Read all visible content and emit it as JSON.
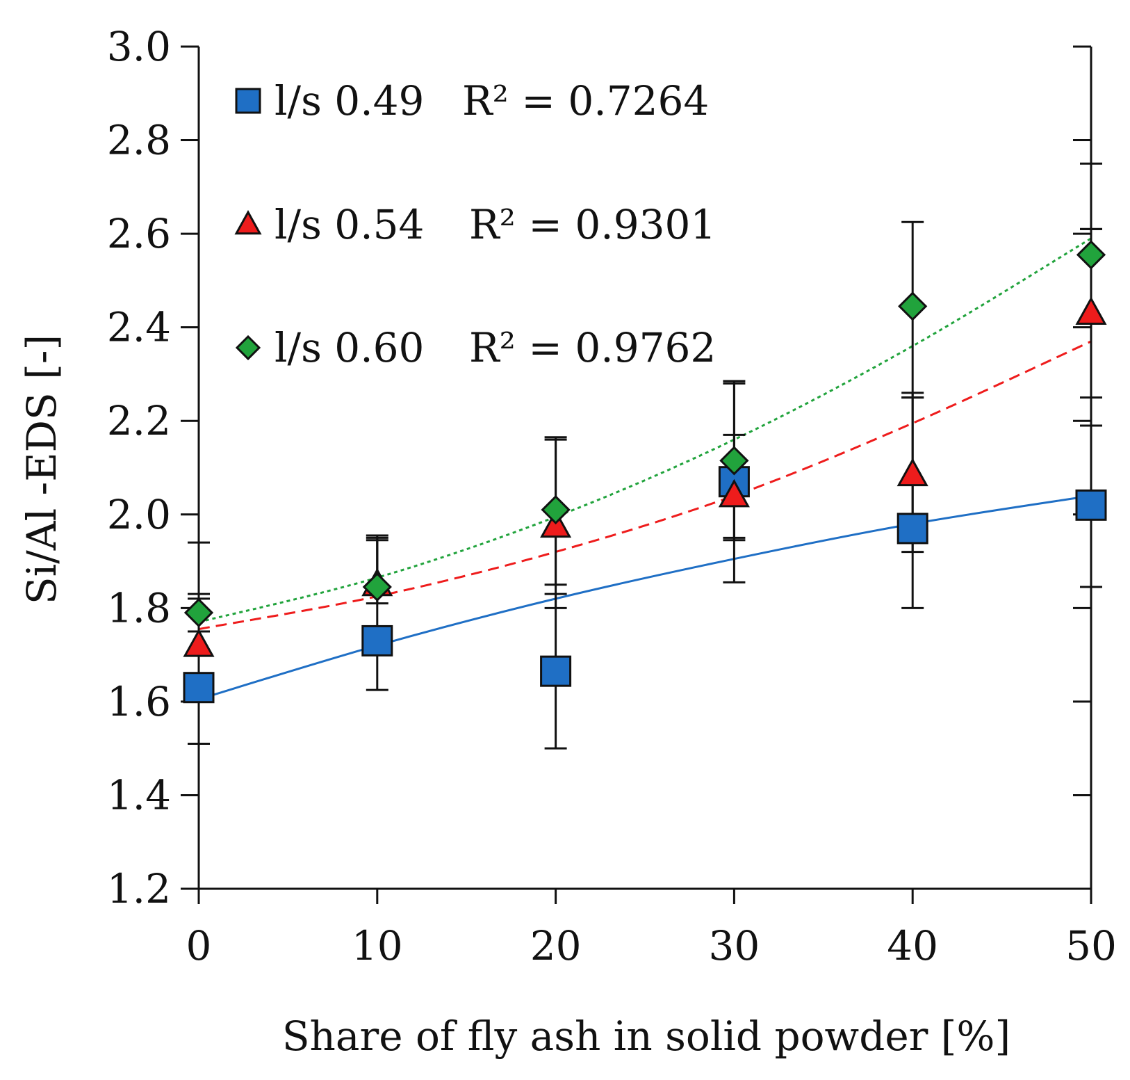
{
  "chart_data": {
    "type": "scatter",
    "xlabel": "Share of fly ash in solid powder [%]",
    "ylabel": "Si/Al -EDS [-]",
    "xlim": [
      0,
      50
    ],
    "ylim": [
      1.2,
      3.0
    ],
    "x_ticks": [
      0,
      10,
      20,
      30,
      40,
      50
    ],
    "y_ticks": [
      1.2,
      1.4,
      1.6,
      1.8,
      2.0,
      2.2,
      2.4,
      2.6,
      2.8,
      3.0
    ],
    "x_tick_labels": [
      "0",
      "10",
      "20",
      "30",
      "40",
      "50"
    ],
    "y_tick_labels": [
      "1.2",
      "1.4",
      "1.6",
      "1.8",
      "2.0",
      "2.2",
      "2.4",
      "2.6",
      "2.8",
      "3.0"
    ],
    "legend_position": "top-left",
    "grid": false,
    "series": [
      {
        "name": "l/s 0.49",
        "r2_label": "R² = 0.7264",
        "marker": "square",
        "color": "#1f6fc5",
        "trend_style": "solid",
        "x": [
          0,
          10,
          20,
          30,
          40,
          50
        ],
        "y": [
          1.63,
          1.73,
          1.665,
          2.07,
          1.97,
          2.02
        ],
        "err_low": [
          1.51,
          1.625,
          1.5,
          1.855,
          1.8,
          1.845
        ],
        "err_high": [
          1.94,
          1.95,
          1.83,
          2.28,
          2.26,
          2.61
        ],
        "trend": [
          1.605,
          1.72,
          1.82,
          1.905,
          1.98,
          2.04
        ]
      },
      {
        "name": "l/s 0.54",
        "r2_label": "R² = 0.9301",
        "marker": "triangle",
        "color": "#ee1c1c",
        "trend_style": "dashed",
        "x": [
          0,
          10,
          20,
          30,
          40,
          50
        ],
        "y": [
          1.72,
          1.85,
          1.975,
          2.04,
          2.085,
          2.43
        ],
        "err_low": [
          1.6,
          1.835,
          1.8,
          1.945,
          1.92,
          2.19
        ],
        "err_high": [
          1.82,
          1.945,
          2.16,
          2.17,
          2.25,
          2.75
        ],
        "trend": [
          1.755,
          1.825,
          1.92,
          2.04,
          2.195,
          2.37
        ]
      },
      {
        "name": "l/s 0.60",
        "r2_label": "R² = 0.9762",
        "marker": "diamond",
        "color": "#21a33c",
        "trend_style": "dotted",
        "x": [
          0,
          10,
          20,
          30,
          40,
          50
        ],
        "y": [
          1.79,
          1.845,
          2.01,
          2.115,
          2.445,
          2.555
        ],
        "err_low": [
          1.75,
          1.81,
          1.85,
          1.95,
          2.25,
          2.25
        ],
        "err_high": [
          1.83,
          1.955,
          2.165,
          2.285,
          2.625,
          2.61
        ],
        "trend": [
          1.77,
          1.865,
          1.995,
          2.16,
          2.36,
          2.59
        ]
      }
    ]
  }
}
